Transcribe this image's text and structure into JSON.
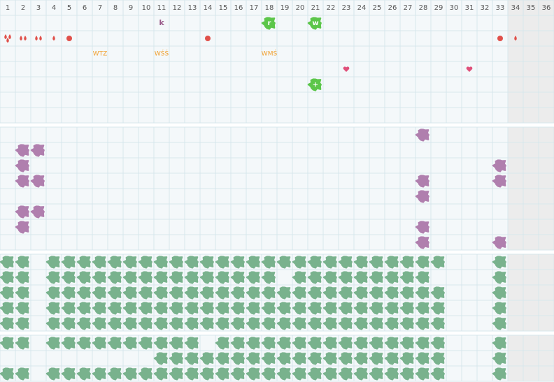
{
  "columns": [
    1,
    2,
    3,
    4,
    5,
    6,
    7,
    8,
    9,
    10,
    11,
    12,
    13,
    14,
    15,
    16,
    17,
    18,
    19,
    20,
    21,
    22,
    23,
    24,
    25,
    26,
    27,
    28,
    29,
    30,
    31,
    32,
    33,
    34,
    35,
    36
  ],
  "top": {
    "rows": [
      [
        {
          "col": 11,
          "kind": "letter",
          "label": "k"
        },
        {
          "col": 18,
          "kind": "blob",
          "label": "r"
        },
        {
          "col": 21,
          "kind": "blob",
          "label": "w"
        }
      ],
      [
        {
          "col": 1,
          "kind": "drops",
          "count": 3
        },
        {
          "col": 2,
          "kind": "drops",
          "count": 2
        },
        {
          "col": 3,
          "kind": "drops",
          "count": 2
        },
        {
          "col": 4,
          "kind": "drops",
          "count": 1
        },
        {
          "col": 5,
          "kind": "dot"
        },
        {
          "col": 14,
          "kind": "dot"
        },
        {
          "col": 33,
          "kind": "dot"
        },
        {
          "col": 34,
          "kind": "drops",
          "count": 1
        }
      ],
      [
        {
          "col": 7,
          "kind": "tag",
          "label": "WTZ"
        },
        {
          "col": 11,
          "kind": "tag",
          "label": "WŚŚ"
        },
        {
          "col": 18,
          "kind": "tag",
          "label": "WMŚ"
        }
      ],
      [
        {
          "col": 23,
          "kind": "heart"
        },
        {
          "col": 31,
          "kind": "heart"
        }
      ],
      [
        {
          "col": 21,
          "kind": "blob",
          "label": "+"
        }
      ],
      [],
      []
    ]
  },
  "sections": [
    {
      "color": "#b07fae",
      "rows": [
        [
          28
        ],
        [
          2,
          3
        ],
        [
          2,
          33
        ],
        [
          2,
          3,
          28,
          33
        ],
        [
          28
        ],
        [
          2,
          3
        ],
        [
          2,
          28
        ],
        [
          28,
          33
        ]
      ]
    },
    {
      "color": "#79b28d",
      "rows": [
        [
          1,
          2,
          4,
          5,
          6,
          7,
          8,
          9,
          10,
          11,
          12,
          13,
          14,
          15,
          16,
          17,
          18,
          19,
          20,
          21,
          22,
          23,
          24,
          25,
          26,
          27,
          28,
          29,
          33
        ],
        [
          1,
          2,
          4,
          5,
          6,
          7,
          8,
          9,
          10,
          11,
          12,
          13,
          14,
          15,
          16,
          17,
          18,
          20,
          21,
          22,
          23,
          24,
          25,
          26,
          27,
          28,
          33
        ],
        [
          1,
          2,
          4,
          5,
          6,
          7,
          8,
          9,
          10,
          11,
          12,
          13,
          14,
          15,
          16,
          17,
          18,
          19,
          20,
          21,
          22,
          23,
          24,
          25,
          26,
          27,
          28,
          29,
          33
        ],
        [
          1,
          2,
          4,
          5,
          6,
          7,
          8,
          9,
          10,
          11,
          12,
          13,
          14,
          15,
          16,
          17,
          18,
          19,
          20,
          21,
          22,
          23,
          24,
          25,
          26,
          27,
          28,
          29,
          33
        ],
        [
          1,
          2,
          4,
          5,
          6,
          7,
          8,
          9,
          10,
          11,
          12,
          13,
          14,
          15,
          16,
          17,
          18,
          19,
          20,
          21,
          22,
          23,
          24,
          25,
          26,
          27,
          28,
          29,
          33
        ]
      ]
    },
    {
      "color": "#79b28d",
      "rows": [
        [
          1,
          2,
          4,
          5,
          6,
          7,
          8,
          9,
          10,
          11,
          12,
          13,
          15,
          16,
          17,
          18,
          19,
          20,
          21,
          22,
          23,
          24,
          25,
          26,
          27,
          28,
          29,
          33
        ],
        [
          11,
          12,
          13,
          14,
          15,
          16,
          17,
          18,
          19,
          20,
          21,
          22,
          23,
          24,
          25,
          26,
          27,
          28,
          29,
          33
        ],
        [
          1,
          2,
          4,
          5,
          6,
          7,
          8,
          9,
          10,
          11,
          12,
          13,
          14,
          15,
          16,
          17,
          18,
          19,
          20,
          21,
          22,
          23,
          24,
          25,
          26,
          27,
          28,
          29,
          33
        ]
      ]
    }
  ]
}
